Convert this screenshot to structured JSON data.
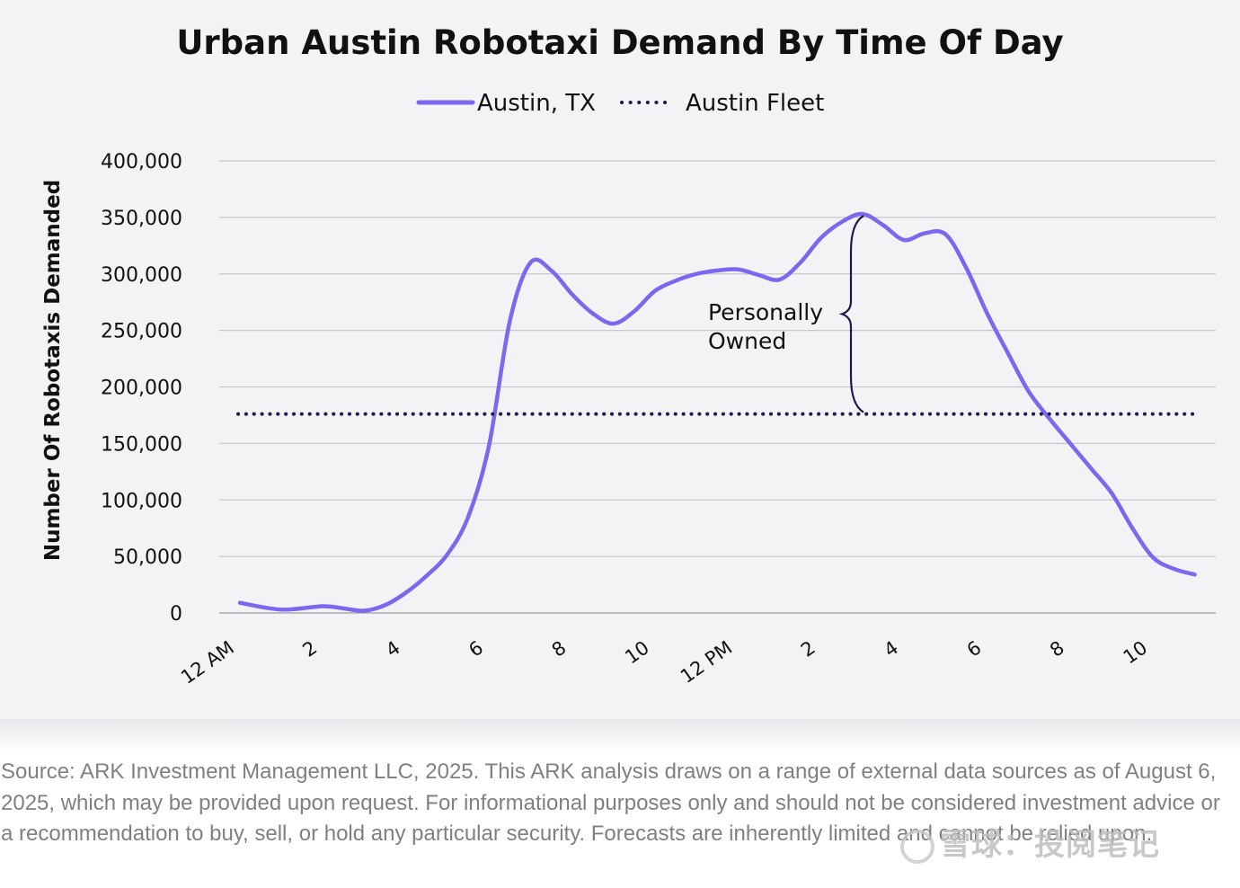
{
  "chart_data": {
    "type": "line",
    "title": "Urban Austin Robotaxi Demand By Time Of Day",
    "ylabel": "Number Of Robotaxis Demanded",
    "xlabel": "",
    "ylim": [
      0,
      400000
    ],
    "yticks": [
      "0",
      "50,000",
      "100,000",
      "150,000",
      "200,000",
      "250,000",
      "300,000",
      "350,000",
      "400,000"
    ],
    "ytick_values": [
      0,
      50000,
      100000,
      150000,
      200000,
      250000,
      300000,
      350000,
      400000
    ],
    "xlim": [
      0,
      23
    ],
    "xticks": [
      {
        "hour": 0,
        "label": "12 AM"
      },
      {
        "hour": 2,
        "label": "2"
      },
      {
        "hour": 4,
        "label": "4"
      },
      {
        "hour": 6,
        "label": "6"
      },
      {
        "hour": 8,
        "label": "8"
      },
      {
        "hour": 10,
        "label": "10"
      },
      {
        "hour": 12,
        "label": "12 PM"
      },
      {
        "hour": 14,
        "label": "2"
      },
      {
        "hour": 16,
        "label": "4"
      },
      {
        "hour": 18,
        "label": "6"
      },
      {
        "hour": 20,
        "label": "8"
      },
      {
        "hour": 22,
        "label": "10"
      }
    ],
    "grid": true,
    "legend_position": "top-center",
    "series": [
      {
        "name": "Austin, TX",
        "style": "solid",
        "color": "#7b68ee",
        "x": [
          0,
          1,
          2,
          2.5,
          3,
          3.5,
          4,
          4.5,
          5,
          5.5,
          6,
          6.5,
          7,
          7.5,
          8,
          8.5,
          9,
          9.5,
          10,
          10.5,
          11,
          11.5,
          12,
          12.5,
          13,
          13.5,
          14,
          14.5,
          15,
          15.5,
          16,
          16.5,
          17,
          17.5,
          18,
          18.5,
          19,
          19.5,
          20,
          20.5,
          21,
          21.5,
          22,
          22.5,
          23
        ],
        "y": [
          9000,
          3000,
          6000,
          4000,
          2000,
          7000,
          18000,
          33000,
          52000,
          85000,
          148000,
          258000,
          310000,
          303000,
          282000,
          265000,
          256000,
          267000,
          285000,
          294000,
          300000,
          303000,
          304000,
          299000,
          295000,
          310000,
          332000,
          346000,
          353000,
          343000,
          330000,
          336000,
          335000,
          305000,
          265000,
          230000,
          196000,
          172000,
          150000,
          128000,
          106000,
          75000,
          49000,
          39000,
          34000
        ]
      },
      {
        "name": "Austin Fleet",
        "style": "dotted",
        "color": "#1f1a4d",
        "x": [
          0,
          23
        ],
        "y": [
          176000,
          176000
        ]
      }
    ],
    "annotations": [
      {
        "text_lines": [
          "Personally",
          "Owned"
        ],
        "brace_hour": 15,
        "from": 176000,
        "to": 353000
      }
    ]
  },
  "source_note": "Source: ARK Investment Management LLC, 2025. This ARK analysis draws on a range of external data sources as of August 6, 2025, which may be provided upon request. For informational purposes only and should not be considered investment advice or a recommendation to buy, sell, or hold any particular security. Forecasts are inherently limited and cannot be relied upon.",
  "watermark": "雪球：投阅笔记"
}
